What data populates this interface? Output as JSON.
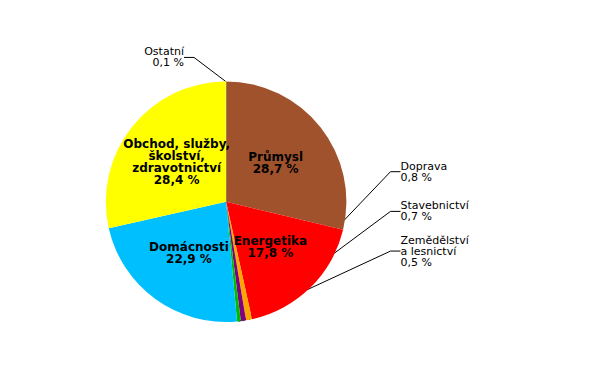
{
  "chart_data": {
    "type": "pie",
    "categories": [
      "Průmysl",
      "Energetika",
      "Doprava",
      "Stavebnictví",
      "Zemědělství\na lesnictví",
      "Domácnosti",
      "Obchod, služby,\nškolství,\nzdravotnictví",
      "Ostatní"
    ],
    "values": [
      28.7,
      17.8,
      0.8,
      0.7,
      0.5,
      22.9,
      28.4,
      0.1
    ],
    "value_labels": [
      "28,7 %",
      "17,8 %",
      "0,8 %",
      "0,7 %",
      "0,5 %",
      "22,9 %",
      "28,4 %",
      "0,1 %"
    ],
    "colors": [
      "#A0522D",
      "#FF0000",
      "#FFA500",
      "#800080",
      "#00BB00",
      "#00BFFF",
      "#FFFF00",
      "#FFFF00"
    ],
    "data_labels": true
  }
}
